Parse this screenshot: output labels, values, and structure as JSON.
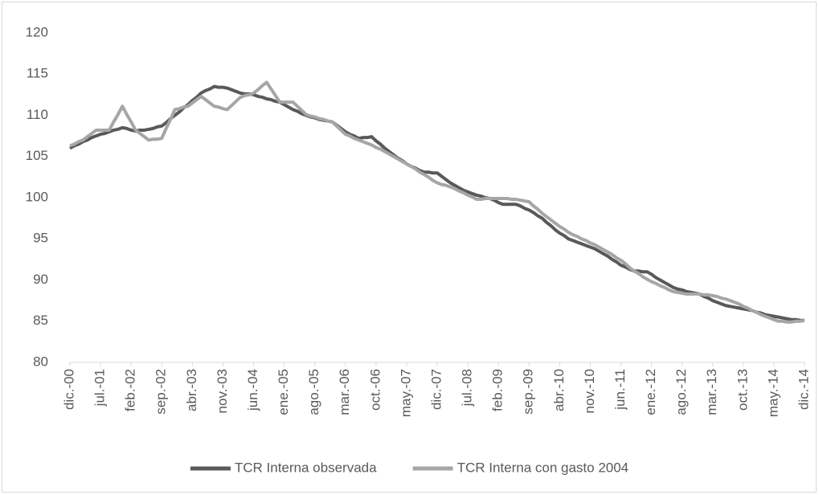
{
  "chart_data": {
    "type": "line",
    "categories": [
      "dic.-00",
      null,
      null,
      null,
      null,
      null,
      null,
      "jul.-01",
      null,
      null,
      null,
      null,
      null,
      null,
      "feb.-02",
      null,
      null,
      null,
      null,
      null,
      null,
      "sep.-02",
      null,
      null,
      null,
      null,
      null,
      null,
      "abr.-03",
      null,
      null,
      null,
      null,
      null,
      null,
      "nov.-03",
      null,
      null,
      null,
      null,
      null,
      null,
      "jun.-04",
      null,
      null,
      null,
      null,
      null,
      null,
      "ene.-05",
      null,
      null,
      null,
      null,
      null,
      null,
      "ago.-05",
      null,
      null,
      null,
      null,
      null,
      null,
      "mar.-06",
      null,
      null,
      null,
      null,
      null,
      null,
      "oct.-06",
      null,
      null,
      null,
      null,
      null,
      null,
      "may.-07",
      null,
      null,
      null,
      null,
      null,
      null,
      "dic.-07",
      null,
      null,
      null,
      null,
      null,
      null,
      "jul.-08",
      null,
      null,
      null,
      null,
      null,
      null,
      "feb.-09",
      null,
      null,
      null,
      null,
      null,
      null,
      "sep.-09",
      null,
      null,
      null,
      null,
      null,
      null,
      "abr.-10",
      null,
      null,
      null,
      null,
      null,
      null,
      "nov.-10",
      null,
      null,
      null,
      null,
      null,
      null,
      "jun.-11",
      null,
      null,
      null,
      null,
      null,
      null,
      "ene.-12",
      null,
      null,
      null,
      null,
      null,
      null,
      "ago.-12",
      null,
      null,
      null,
      null,
      null,
      null,
      "mar.-13",
      null,
      null,
      null,
      null,
      null,
      null,
      "oct.-13",
      null,
      null,
      null,
      null,
      null,
      null,
      "may.-14",
      null,
      null,
      null,
      null,
      null,
      null,
      "dic.-14"
    ],
    "series": [
      {
        "name": "TCR Interna observada",
        "color": "#595959",
        "values": [
          106.0,
          106.3,
          106.5,
          106.8,
          107.0,
          107.3,
          107.5,
          107.7,
          107.8,
          108.0,
          108.2,
          108.3,
          108.5,
          108.4,
          108.2,
          108.1,
          108.2,
          108.2,
          108.3,
          108.4,
          108.6,
          108.7,
          109.1,
          109.6,
          110.0,
          110.4,
          110.9,
          111.3,
          111.8,
          112.2,
          112.7,
          113.0,
          113.2,
          113.5,
          113.4,
          113.4,
          113.3,
          113.1,
          112.9,
          112.7,
          112.6,
          112.6,
          112.5,
          112.3,
          112.2,
          112.0,
          111.9,
          111.7,
          111.6,
          111.3,
          111.0,
          110.7,
          110.5,
          110.2,
          110.0,
          109.8,
          109.7,
          109.5,
          109.4,
          109.3,
          109.2,
          108.8,
          108.4,
          108.0,
          107.7,
          107.5,
          107.2,
          107.3,
          107.3,
          107.4,
          106.9,
          106.5,
          106.0,
          105.6,
          105.2,
          104.8,
          104.5,
          104.1,
          103.8,
          103.6,
          103.3,
          103.1,
          103.1,
          103.0,
          103.0,
          102.6,
          102.2,
          101.8,
          101.5,
          101.2,
          100.9,
          100.7,
          100.5,
          100.3,
          100.2,
          100.0,
          99.9,
          99.7,
          99.4,
          99.2,
          99.2,
          99.2,
          99.2,
          99.0,
          98.7,
          98.5,
          98.2,
          97.8,
          97.5,
          97.0,
          96.6,
          96.1,
          95.7,
          95.4,
          95.0,
          94.8,
          94.6,
          94.4,
          94.2,
          94.0,
          93.8,
          93.5,
          93.2,
          92.9,
          92.5,
          92.2,
          91.8,
          91.6,
          91.3,
          91.1,
          91.1,
          91.0,
          91.0,
          90.7,
          90.3,
          90.0,
          89.7,
          89.4,
          89.1,
          88.9,
          88.8,
          88.6,
          88.5,
          88.4,
          88.3,
          88.0,
          87.8,
          87.5,
          87.3,
          87.1,
          86.9,
          86.8,
          86.7,
          86.6,
          86.5,
          86.4,
          86.3,
          86.1,
          86.0,
          85.8,
          85.7,
          85.6,
          85.5,
          85.4,
          85.3,
          85.2,
          85.2,
          85.1,
          85.1
        ]
      },
      {
        "name": "TCR Interna con gasto 2004",
        "color": "#a6a6a6",
        "values": [
          106.3,
          106.5,
          106.8,
          107.0,
          107.4,
          107.8,
          108.2,
          108.2,
          108.2,
          108.2,
          109.2,
          110.1,
          111.1,
          110.1,
          109.2,
          108.2,
          107.8,
          107.4,
          107.0,
          107.1,
          107.1,
          107.2,
          108.4,
          109.5,
          110.7,
          110.8,
          111.0,
          111.1,
          111.5,
          111.9,
          112.3,
          111.9,
          111.5,
          111.1,
          111.0,
          110.8,
          110.7,
          111.2,
          111.7,
          112.2,
          112.4,
          112.5,
          112.7,
          113.1,
          113.6,
          114.0,
          113.2,
          112.4,
          111.6,
          111.6,
          111.6,
          111.6,
          111.1,
          110.6,
          110.1,
          109.9,
          109.8,
          109.6,
          109.5,
          109.3,
          109.2,
          108.7,
          108.2,
          107.7,
          107.5,
          107.2,
          107.0,
          106.8,
          106.6,
          106.4,
          106.1,
          105.9,
          105.6,
          105.3,
          105.0,
          104.7,
          104.4,
          104.1,
          103.8,
          103.5,
          103.1,
          102.8,
          102.5,
          102.1,
          101.8,
          101.6,
          101.5,
          101.3,
          101.1,
          100.8,
          100.6,
          100.3,
          100.1,
          99.8,
          99.8,
          99.9,
          99.9,
          99.9,
          99.9,
          99.9,
          99.9,
          99.8,
          99.8,
          99.7,
          99.6,
          99.5,
          99.0,
          98.6,
          98.1,
          97.7,
          97.3,
          96.9,
          96.5,
          96.2,
          95.8,
          95.5,
          95.3,
          95.0,
          94.8,
          94.5,
          94.3,
          94.0,
          93.7,
          93.4,
          93.1,
          92.7,
          92.4,
          92.0,
          91.5,
          91.1,
          90.8,
          90.4,
          90.1,
          89.8,
          89.6,
          89.3,
          89.1,
          88.8,
          88.6,
          88.5,
          88.4,
          88.3,
          88.3,
          88.3,
          88.3,
          88.2,
          88.2,
          88.1,
          88.0,
          87.8,
          87.7,
          87.5,
          87.3,
          87.1,
          86.8,
          86.6,
          86.3,
          86.1,
          85.8,
          85.6,
          85.4,
          85.2,
          85.0,
          85.0,
          84.9,
          84.9,
          85.0,
          85.0,
          85.1
        ]
      }
    ],
    "ylim": [
      80,
      120
    ],
    "yticks": [
      80,
      85,
      90,
      95,
      100,
      105,
      110,
      115,
      120
    ],
    "grid": false,
    "legend": "bottom"
  }
}
